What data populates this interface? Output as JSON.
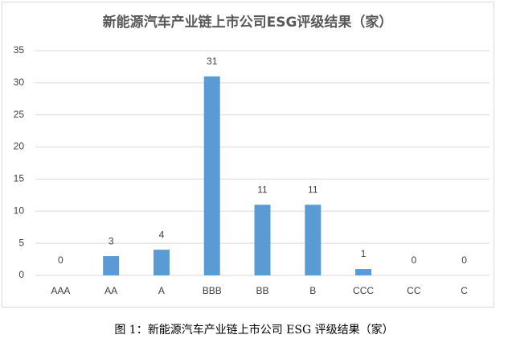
{
  "chart_data": {
    "type": "bar",
    "title": "新能源汽车产业链上市公司ESG评级结果（家）",
    "categories": [
      "AAA",
      "AA",
      "A",
      "BBB",
      "BB",
      "B",
      "CCC",
      "CC",
      "C"
    ],
    "values": [
      0,
      3,
      4,
      31,
      11,
      11,
      1,
      0,
      0
    ],
    "color": "#5b9bd5",
    "ylim": [
      0,
      35
    ],
    "yticks": [
      0,
      5,
      10,
      15,
      20,
      25,
      30,
      35
    ],
    "grid": true
  },
  "caption": "图 1：新能源汽车产业链上市公司 ESG 评级结果（家）"
}
